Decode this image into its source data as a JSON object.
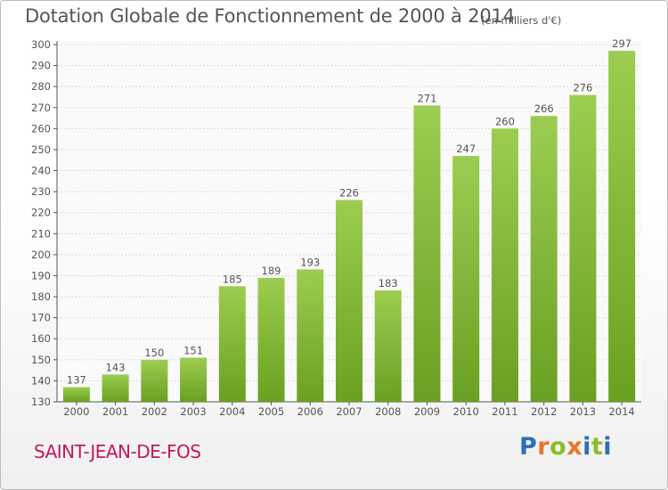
{
  "title": "Dotation Globale de Fonctionnement de 2000 à 2014",
  "subtitle": "(en milliers d'€)",
  "town": "SAINT-JEAN-DE-FOS",
  "logo": {
    "letters": [
      "P",
      "r",
      "o",
      "x",
      "i",
      "t",
      "i"
    ],
    "colors": [
      "#2c6fb5",
      "#e8742a",
      "#8bbd2a",
      "#e8742a",
      "#2c6fb5",
      "#8bbd2a",
      "#2c6fb5"
    ]
  },
  "colors": {
    "bar_top": "#9ccd50",
    "bar_bottom": "#6aa021",
    "grid": "#d9d9d9",
    "axis": "#555555",
    "text": "#555555"
  },
  "chart_data": {
    "type": "bar",
    "title": "Dotation Globale de Fonctionnement de 2000 à 2014",
    "subtitle": "(en milliers d'€)",
    "categories": [
      "2000",
      "2001",
      "2002",
      "2003",
      "2004",
      "2005",
      "2006",
      "2007",
      "2008",
      "2009",
      "2010",
      "2011",
      "2012",
      "2013",
      "2014"
    ],
    "values": [
      137,
      143,
      150,
      151,
      185,
      189,
      193,
      226,
      183,
      271,
      247,
      260,
      266,
      276,
      297
    ],
    "ylim": [
      130,
      300
    ],
    "ytick_step": 10,
    "grid": true,
    "xlabel": "",
    "ylabel": ""
  }
}
